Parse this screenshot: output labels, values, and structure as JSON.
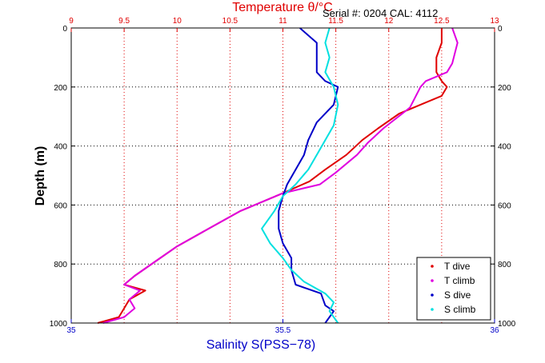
{
  "chart_data": {
    "type": "line",
    "title_top": "Temperature θ/°C",
    "serial_text": "Serial #: 0204  CAL: 4112",
    "xlabel_bottom": "Salinity S(PSS−78)",
    "ylabel": "Depth (m)",
    "temperature_axis": {
      "range": [
        9,
        13
      ],
      "ticks": [
        9,
        9.5,
        10,
        10.5,
        11,
        11.5,
        12,
        12.5,
        13
      ],
      "tick_labels": [
        "9",
        "9.5",
        "10",
        "10.5",
        "11",
        "11.5",
        "12",
        "12.5",
        "13"
      ]
    },
    "salinity_axis": {
      "range": [
        35,
        36
      ],
      "ticks": [
        35,
        35.5,
        36
      ],
      "tick_labels": [
        "35",
        "35.5",
        "36"
      ]
    },
    "depth_axis": {
      "range": [
        0,
        1000
      ],
      "reversed": true,
      "ticks": [
        0,
        200,
        400,
        600,
        800,
        1000
      ],
      "tick_labels": [
        "0",
        "200",
        "400",
        "600",
        "800",
        "1000"
      ]
    },
    "grid": true,
    "legend_position": "bottom-right",
    "series": [
      {
        "name": "T dive",
        "axis": "temperature",
        "color": "#e00000",
        "points": [
          [
            12.5,
            0
          ],
          [
            12.5,
            50
          ],
          [
            12.45,
            100
          ],
          [
            12.45,
            150
          ],
          [
            12.5,
            180
          ],
          [
            12.55,
            200
          ],
          [
            12.5,
            230
          ],
          [
            12.1,
            290
          ],
          [
            11.9,
            340
          ],
          [
            11.75,
            380
          ],
          [
            11.6,
            430
          ],
          [
            11.4,
            480
          ],
          [
            11.25,
            520
          ],
          [
            11.0,
            560
          ],
          [
            10.6,
            620
          ],
          [
            10.3,
            680
          ],
          [
            10.0,
            740
          ],
          [
            9.8,
            790
          ],
          [
            9.6,
            840
          ],
          [
            9.5,
            870
          ],
          [
            9.7,
            890
          ],
          [
            9.55,
            920
          ],
          [
            9.5,
            950
          ],
          [
            9.45,
            980
          ],
          [
            9.25,
            1000
          ]
        ]
      },
      {
        "name": "T climb",
        "axis": "temperature",
        "color": "#e000e0",
        "points": [
          [
            12.6,
            0
          ],
          [
            12.65,
            50
          ],
          [
            12.6,
            120
          ],
          [
            12.55,
            150
          ],
          [
            12.35,
            180
          ],
          [
            12.3,
            200
          ],
          [
            12.2,
            270
          ],
          [
            11.95,
            340
          ],
          [
            11.8,
            390
          ],
          [
            11.7,
            430
          ],
          [
            11.5,
            490
          ],
          [
            11.35,
            530
          ],
          [
            11.0,
            560
          ],
          [
            10.6,
            620
          ],
          [
            10.3,
            680
          ],
          [
            10.0,
            740
          ],
          [
            9.8,
            790
          ],
          [
            9.6,
            840
          ],
          [
            9.5,
            870
          ],
          [
            9.65,
            890
          ],
          [
            9.55,
            920
          ],
          [
            9.6,
            950
          ],
          [
            9.5,
            980
          ],
          [
            9.3,
            1000
          ]
        ]
      },
      {
        "name": "S dive",
        "axis": "salinity",
        "color": "#0000c8",
        "points": [
          [
            35.54,
            0
          ],
          [
            35.58,
            50
          ],
          [
            35.58,
            100
          ],
          [
            35.58,
            150
          ],
          [
            35.6,
            180
          ],
          [
            35.63,
            200
          ],
          [
            35.62,
            260
          ],
          [
            35.58,
            320
          ],
          [
            35.56,
            380
          ],
          [
            35.55,
            430
          ],
          [
            35.53,
            480
          ],
          [
            35.51,
            530
          ],
          [
            35.5,
            570
          ],
          [
            35.49,
            620
          ],
          [
            35.49,
            680
          ],
          [
            35.5,
            730
          ],
          [
            35.52,
            780
          ],
          [
            35.52,
            820
          ],
          [
            35.53,
            870
          ],
          [
            35.59,
            900
          ],
          [
            35.6,
            940
          ],
          [
            35.62,
            960
          ],
          [
            35.6,
            1000
          ]
        ]
      },
      {
        "name": "S climb",
        "axis": "salinity",
        "color": "#00e0e0",
        "points": [
          [
            35.61,
            0
          ],
          [
            35.6,
            50
          ],
          [
            35.61,
            100
          ],
          [
            35.6,
            150
          ],
          [
            35.62,
            200
          ],
          [
            35.63,
            260
          ],
          [
            35.62,
            330
          ],
          [
            35.6,
            380
          ],
          [
            35.58,
            430
          ],
          [
            35.56,
            480
          ],
          [
            35.53,
            530
          ],
          [
            35.5,
            570
          ],
          [
            35.48,
            620
          ],
          [
            35.45,
            680
          ],
          [
            35.47,
            730
          ],
          [
            35.5,
            780
          ],
          [
            35.52,
            820
          ],
          [
            35.55,
            860
          ],
          [
            35.6,
            900
          ],
          [
            35.62,
            930
          ],
          [
            35.61,
            960
          ],
          [
            35.63,
            1000
          ]
        ]
      }
    ]
  }
}
